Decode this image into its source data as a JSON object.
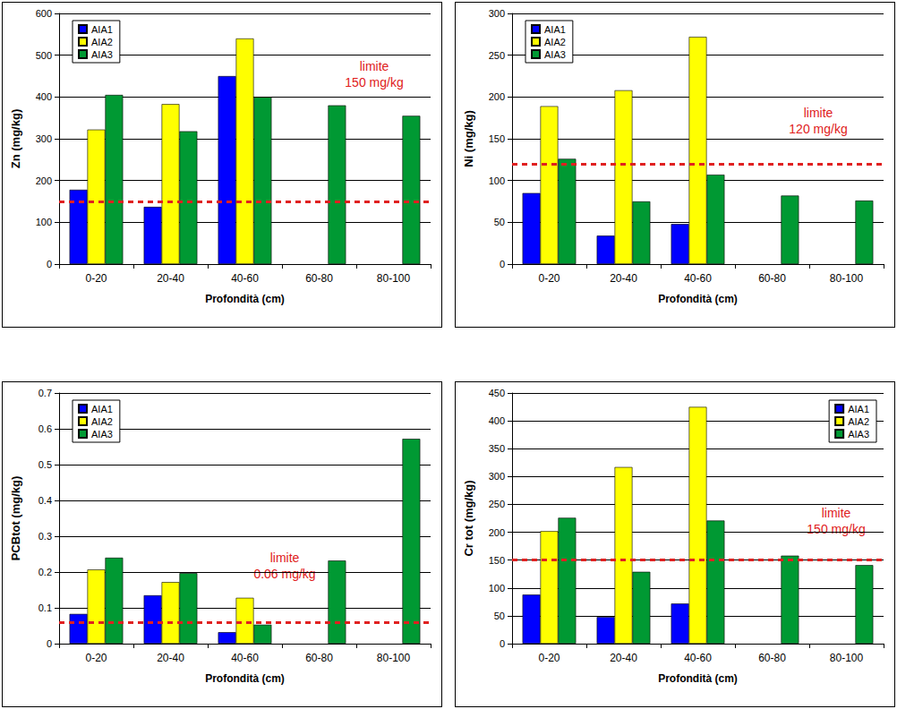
{
  "chart_data": [
    {
      "type": "bar",
      "y_label": "Zn (mg/kg)",
      "x_label": "Profondità (cm)",
      "categories": [
        "0-20",
        "20-40",
        "40-60",
        "60-80",
        "80-100"
      ],
      "series": [
        {
          "name": "AIA1",
          "color": "#0000ff",
          "values": [
            178,
            137,
            450,
            null,
            null
          ]
        },
        {
          "name": "AIA2",
          "color": "#ffff00",
          "values": [
            322,
            383,
            540,
            null,
            null
          ]
        },
        {
          "name": "AIA3",
          "color": "#009933",
          "values": [
            405,
            318,
            400,
            380,
            355
          ]
        }
      ],
      "limit": {
        "value": 150,
        "label": [
          "limite",
          "150 mg/kg"
        ]
      },
      "ylim": [
        0,
        600
      ],
      "yticks": [
        0,
        100,
        200,
        300,
        400,
        500,
        600
      ],
      "grid": true,
      "legend": "upper left"
    },
    {
      "type": "bar",
      "y_label": "Ni (mg/kg)",
      "x_label": "Profondità (cm)",
      "categories": [
        "0-20",
        "20-40",
        "40-60",
        "60-80",
        "80-100"
      ],
      "series": [
        {
          "name": "AIA1",
          "color": "#0000ff",
          "values": [
            85,
            34,
            48,
            null,
            null
          ]
        },
        {
          "name": "AIA2",
          "color": "#ffff00",
          "values": [
            189,
            208,
            272,
            null,
            null
          ]
        },
        {
          "name": "AIA3",
          "color": "#009933",
          "values": [
            126,
            75,
            107,
            82,
            76
          ]
        }
      ],
      "limit": {
        "value": 120,
        "label": [
          "limite",
          "120 mg/kg"
        ]
      },
      "ylim": [
        0,
        300
      ],
      "yticks": [
        0,
        50,
        100,
        150,
        200,
        250,
        300
      ],
      "grid": true,
      "legend": "upper left"
    },
    {
      "type": "bar",
      "y_label": "PCBtot (mg/kg)",
      "x_label": "Profondità (cm)",
      "categories": [
        "0-20",
        "20-40",
        "40-60",
        "60-80",
        "80-100"
      ],
      "series": [
        {
          "name": "AIA1",
          "color": "#0000ff",
          "values": [
            0.083,
            0.135,
            0.032,
            null,
            null
          ]
        },
        {
          "name": "AIA2",
          "color": "#ffff00",
          "values": [
            0.207,
            0.172,
            0.128,
            null,
            null
          ]
        },
        {
          "name": "AIA3",
          "color": "#009933",
          "values": [
            0.24,
            0.197,
            0.053,
            0.232,
            0.572
          ]
        }
      ],
      "limit": {
        "value": 0.06,
        "label": [
          "limite",
          "0.06 mg/kg"
        ]
      },
      "ylim": [
        0,
        0.7
      ],
      "yticks": [
        0,
        0.1,
        0.2,
        0.3,
        0.4,
        0.5,
        0.6,
        0.7
      ],
      "grid": true,
      "legend": "upper left"
    },
    {
      "type": "bar",
      "y_label": "Cr tot (mg/kg)",
      "x_label": "Profondità (cm)",
      "categories": [
        "0-20",
        "20-40",
        "40-60",
        "60-80",
        "80-100"
      ],
      "series": [
        {
          "name": "AIA1",
          "color": "#0000ff",
          "values": [
            88,
            48,
            72,
            null,
            null
          ]
        },
        {
          "name": "AIA2",
          "color": "#ffff00",
          "values": [
            202,
            317,
            425,
            null,
            null
          ]
        },
        {
          "name": "AIA3",
          "color": "#009933",
          "values": [
            226,
            129,
            221,
            158,
            141
          ]
        }
      ],
      "limit": {
        "value": 150,
        "label": [
          "limite",
          "150 mg/kg"
        ]
      },
      "ylim": [
        0,
        450
      ],
      "yticks": [
        0,
        50,
        100,
        150,
        200,
        250,
        300,
        350,
        400,
        450
      ],
      "grid": true,
      "legend": "upper right"
    }
  ]
}
